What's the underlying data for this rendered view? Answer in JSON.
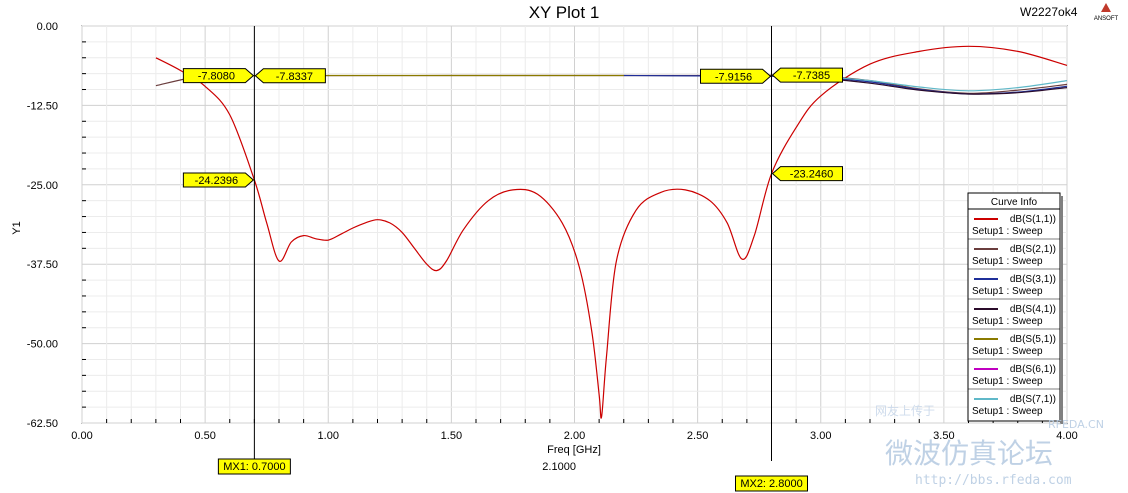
{
  "header": {
    "title": "XY Plot 1",
    "project": "W2227ok4",
    "brand": "ANSOFT"
  },
  "chart_data": {
    "type": "line",
    "title": "XY Plot 1",
    "xlabel": "Freq [GHz]",
    "ylabel": "Y1",
    "xlim": [
      0,
      4
    ],
    "ylim": [
      -62.5,
      0
    ],
    "x_ticks": [
      "0.00",
      "0.50",
      "1.00",
      "1.50",
      "2.00",
      "2.50",
      "3.00",
      "3.50",
      "4.00"
    ],
    "y_ticks": [
      "0.00",
      "-12.50",
      "-25.00",
      "-37.50",
      "-50.00",
      "-62.50"
    ],
    "grid": true,
    "legend_position": "right",
    "legend_title": "Curve Info",
    "series": [
      {
        "name": "dB(S(1,1))",
        "setup": "Setup1 : Sweep",
        "color": "#cc0000",
        "x": [
          0.3,
          0.4,
          0.5,
          0.6,
          0.7,
          0.75,
          0.8,
          0.85,
          0.9,
          0.95,
          1.0,
          1.05,
          1.1,
          1.15,
          1.2,
          1.25,
          1.3,
          1.35,
          1.4,
          1.44,
          1.48,
          1.55,
          1.65,
          1.75,
          1.85,
          1.95,
          2.02,
          2.07,
          2.1,
          2.11,
          2.13,
          2.17,
          2.25,
          2.35,
          2.45,
          2.55,
          2.62,
          2.68,
          2.73,
          2.8,
          2.9,
          3.0,
          3.2,
          3.4,
          3.6,
          3.8,
          4.0
        ],
        "y": [
          -5,
          -7,
          -9.5,
          -14,
          -24.24,
          -31,
          -37,
          -34,
          -33,
          -33.5,
          -33.7,
          -32.8,
          -31.8,
          -31,
          -30.5,
          -31,
          -32.5,
          -35,
          -37.5,
          -38.5,
          -37,
          -32,
          -27.5,
          -25.8,
          -26.5,
          -31,
          -38,
          -48,
          -58,
          -61.5,
          -52,
          -37,
          -29,
          -26.2,
          -25.8,
          -27.5,
          -31,
          -36.7,
          -33,
          -23.25,
          -16,
          -11,
          -6,
          -4,
          -3.2,
          -4,
          -6.2
        ]
      },
      {
        "name": "dB(S(2,1))",
        "setup": "Setup1 : Sweep",
        "color": "#6a3d3d",
        "x": [
          0.3,
          0.5,
          0.7,
          1.5,
          2.5,
          2.8,
          3.0,
          3.2,
          3.4,
          3.6,
          3.8,
          4.0
        ],
        "y": [
          -9.4,
          -7.8,
          -7.83,
          -7.8,
          -7.8,
          -7.74,
          -7.9,
          -8.6,
          -9.9,
          -10.6,
          -10.1,
          -9.2
        ]
      },
      {
        "name": "dB(S(3,1))",
        "setup": "Setup1 : Sweep",
        "color": "#1f2f99",
        "x": [
          2.2,
          2.5,
          2.8,
          3.0,
          3.2,
          3.4,
          3.6,
          3.8,
          4.0
        ],
        "y": [
          -7.8,
          -7.85,
          -7.92,
          -8.1,
          -8.8,
          -10.0,
          -10.7,
          -10.4,
          -9.5
        ]
      },
      {
        "name": "dB(S(4,1))",
        "setup": "Setup1 : Sweep",
        "color": "#2a0b2a",
        "x": [
          2.85,
          3.0,
          3.2,
          3.4,
          3.6,
          3.8,
          4.0
        ],
        "y": [
          -7.9,
          -8.2,
          -9.0,
          -10.1,
          -10.7,
          -10.5,
          -9.7
        ]
      },
      {
        "name": "dB(S(5,1))",
        "setup": "Setup1 : Sweep",
        "color": "#8a7a00",
        "x": [
          0.7,
          1.0,
          1.5,
          2.0,
          2.2
        ],
        "y": [
          -7.83,
          -7.8,
          -7.8,
          -7.8,
          -7.8
        ]
      },
      {
        "name": "dB(S(6,1))",
        "setup": "Setup1 : Sweep",
        "color": "#c000c0",
        "x": [],
        "y": []
      },
      {
        "name": "dB(S(7,1))",
        "setup": "Setup1 : Sweep",
        "color": "#5fb8c8",
        "x": [
          2.9,
          3.0,
          3.2,
          3.4,
          3.6,
          3.8,
          4.0
        ],
        "y": [
          -8.0,
          -8.0,
          -8.6,
          -9.6,
          -10.2,
          -9.7,
          -8.6
        ]
      }
    ],
    "markers": [
      {
        "name": "MX1",
        "x": 0.7,
        "label": "MX1: 0.7000"
      },
      {
        "name": "MX2",
        "x": 2.8,
        "label": "MX2: 2.8000"
      }
    ],
    "value_labels": [
      {
        "text": "-7.8080",
        "x": 0.7,
        "y": -7.808,
        "side": "left"
      },
      {
        "text": "-7.8337",
        "x": 0.7,
        "y": -7.8337,
        "side": "right"
      },
      {
        "text": "-24.2396",
        "x": 0.7,
        "y": -24.2396,
        "side": "left"
      },
      {
        "text": "-7.9156",
        "x": 2.8,
        "y": -7.9156,
        "side": "left"
      },
      {
        "text": "-7.7385",
        "x": 2.8,
        "y": -7.7385,
        "side": "right"
      },
      {
        "text": "-23.2460",
        "x": 2.8,
        "y": -23.246,
        "side": "right"
      }
    ],
    "annotation": {
      "text": "2.1000",
      "x": 2.1
    }
  },
  "watermark": {
    "text_faint": "网友上传于",
    "text_site_short": "RFEDA.CN",
    "text_main": "微波仿真论坛",
    "text_url": "http://bbs.rfeda.com"
  }
}
